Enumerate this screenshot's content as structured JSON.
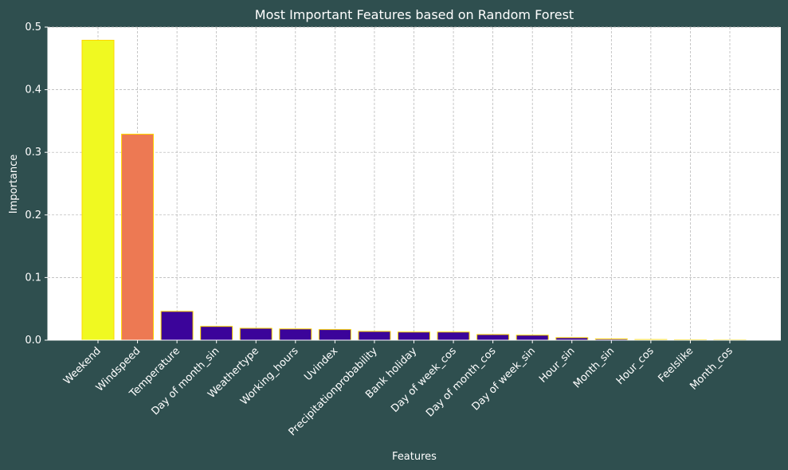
{
  "chart_data": {
    "type": "bar",
    "title": "Most Important Features based on Random Forest",
    "xlabel": "Features",
    "ylabel": "Importance",
    "ylim": [
      0,
      0.5
    ],
    "yticks": [
      0.0,
      0.1,
      0.2,
      0.3,
      0.4,
      0.5
    ],
    "ytick_labels": [
      "0.0",
      "0.1",
      "0.2",
      "0.3",
      "0.4",
      "0.5"
    ],
    "grid": true,
    "categories": [
      "Weekend",
      "Windspeed",
      "Temperature",
      "Day of month_sin",
      "Weathertype",
      "Working_hours",
      "Uvindex",
      "Precipitationprobability",
      "Bank holiday",
      "Day of week_cos",
      "Day of month_cos",
      "Day of week_sin",
      "Hour_sin",
      "Month_sin",
      "Hour_cos",
      "Feelslike",
      "Month_cos"
    ],
    "values": [
      0.479,
      0.329,
      0.046,
      0.022,
      0.019,
      0.018,
      0.017,
      0.014,
      0.013,
      0.013,
      0.009,
      0.008,
      0.004,
      0.002,
      0.001,
      0.0007,
      0.0005
    ],
    "colors": [
      "#f0f921",
      "#ed7953",
      "#3b049a",
      "#3b049a",
      "#3b049a",
      "#3b049a",
      "#3b049a",
      "#3b049a",
      "#3b049a",
      "#3b049a",
      "#3b049a",
      "#3b049a",
      "#3b049a",
      "#3b049a",
      "#3b049a",
      "#3b049a",
      "#3b049a"
    ],
    "bar_edge_color": "#ffd700",
    "background_color": "#2f4f4f",
    "plot_background_color": "#ffffff",
    "text_color": "#ffffff"
  }
}
